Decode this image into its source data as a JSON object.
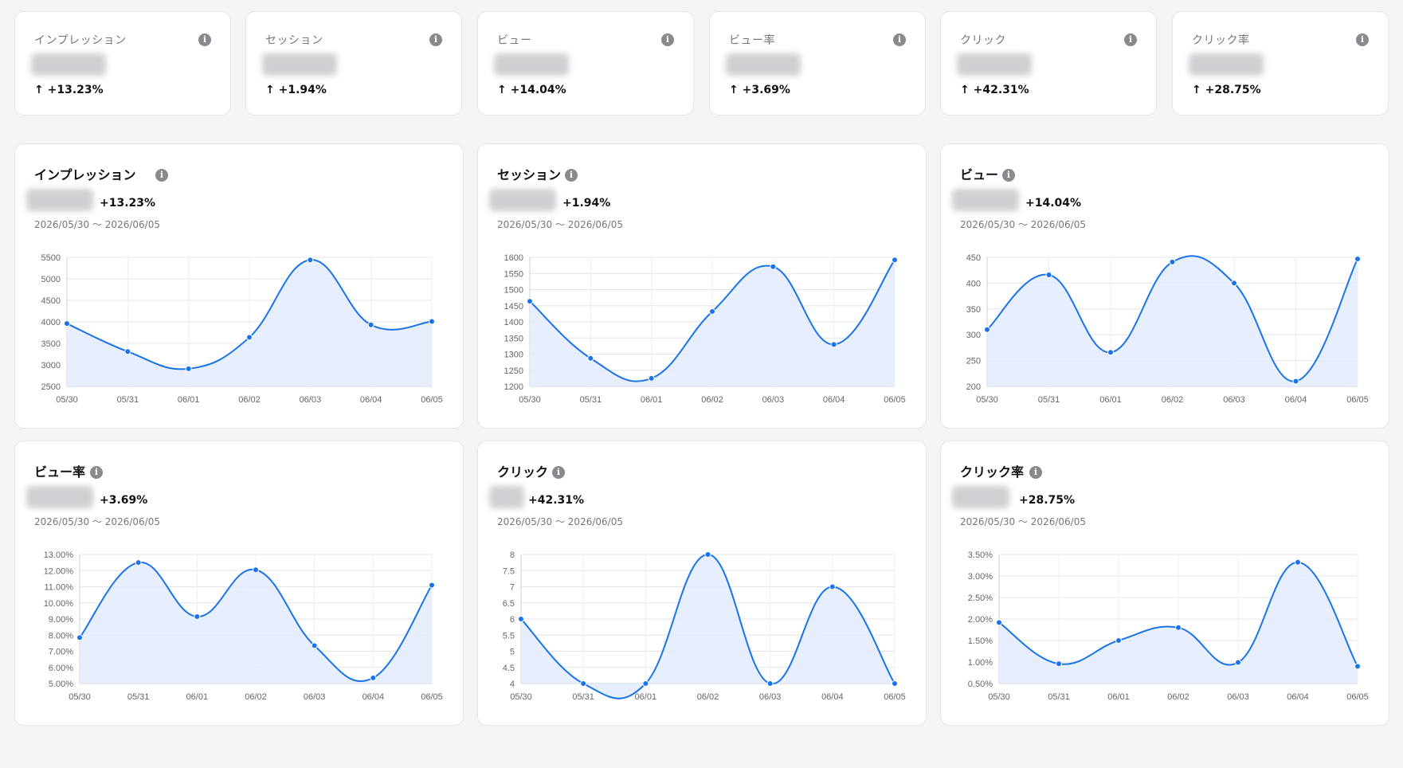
{
  "accent_color": "#1a73e8",
  "fill_color": "#e3ebfd",
  "kpis": [
    {
      "label": "インプレッション",
      "delta": "↑ +13.23%",
      "icon": "info-icon"
    },
    {
      "label": "セッション",
      "delta": "↑ +1.94%",
      "icon": "info-icon"
    },
    {
      "label": "ビュー",
      "delta": "↑ +14.04%",
      "icon": "info-icon"
    },
    {
      "label": "ビュー率",
      "delta": "↑ +3.69%",
      "icon": "info-icon"
    },
    {
      "label": "クリック",
      "delta": "↑ +42.31%",
      "icon": "info-icon"
    },
    {
      "label": "クリック率",
      "delta": "↑ +28.75%",
      "icon": "info-icon"
    }
  ],
  "charts": [
    {
      "title": "インプレッション",
      "delta": "+13.23%",
      "range": "2026/05/30 〜 2026/06/05"
    },
    {
      "title": "セッション",
      "delta": "+1.94%",
      "range": "2026/05/30 〜 2026/06/05"
    },
    {
      "title": "ビュー",
      "delta": "+14.04%",
      "range": "2026/05/30 〜 2026/06/05"
    },
    {
      "title": "ビュー率",
      "delta": "+3.69%",
      "range": "2026/05/30 〜 2026/06/05"
    },
    {
      "title": "クリック",
      "delta": "+42.31%",
      "range": "2026/05/30 〜 2026/06/05"
    },
    {
      "title": "クリック率",
      "delta": "+28.75%",
      "range": "2026/05/30 〜 2026/06/05"
    }
  ],
  "chart_data": [
    {
      "type": "line",
      "title": "インプレッション",
      "categories": [
        "05/30",
        "05/31",
        "06/01",
        "06/02",
        "06/03",
        "06/04",
        "06/05"
      ],
      "series": [
        {
          "values": [
            3960,
            3310,
            2910,
            3640,
            5440,
            3930,
            4010
          ]
        }
      ],
      "ylim": [
        2500,
        5500
      ],
      "yticks": [
        2500,
        3000,
        3500,
        4000,
        4500,
        5000,
        5500
      ],
      "yticklabels": [
        "2500",
        "3000",
        "3500",
        "4000",
        "4500",
        "5000",
        "5500"
      ],
      "grid": true
    },
    {
      "type": "line",
      "title": "セッション",
      "categories": [
        "05/30",
        "05/31",
        "06/01",
        "06/02",
        "06/03",
        "06/04",
        "06/05"
      ],
      "series": [
        {
          "values": [
            1464,
            1287,
            1225,
            1432,
            1571,
            1330,
            1592
          ]
        }
      ],
      "ylim": [
        1200,
        1600
      ],
      "yticks": [
        1200,
        1250,
        1300,
        1350,
        1400,
        1450,
        1500,
        1550,
        1600
      ],
      "yticklabels": [
        "1200",
        "1250",
        "1300",
        "1350",
        "1400",
        "1450",
        "1500",
        "1550",
        "1600"
      ],
      "grid": true
    },
    {
      "type": "line",
      "title": "ビュー",
      "categories": [
        "05/30",
        "05/31",
        "06/01",
        "06/02",
        "06/03",
        "06/04",
        "06/05"
      ],
      "series": [
        {
          "values": [
            310,
            416,
            266,
            441,
            400,
            210,
            447
          ]
        }
      ],
      "ylim": [
        200,
        450
      ],
      "yticks": [
        200,
        250,
        300,
        350,
        400,
        450
      ],
      "yticklabels": [
        "200",
        "250",
        "300",
        "350",
        "400",
        "450"
      ],
      "grid": true
    },
    {
      "type": "line",
      "title": "ビュー率",
      "categories": [
        "05/30",
        "05/31",
        "06/01",
        "06/02",
        "06/03",
        "06/04",
        "06/05"
      ],
      "series": [
        {
          "values": [
            7.85,
            12.5,
            9.15,
            12.05,
            7.35,
            5.35,
            11.1
          ]
        }
      ],
      "ylim": [
        5,
        13
      ],
      "yticks": [
        5,
        6,
        7,
        8,
        9,
        10,
        11,
        12,
        13
      ],
      "yticklabels": [
        "5.00%",
        "6.00%",
        "7.00%",
        "8.00%",
        "9.00%",
        "10.00%",
        "11.00%",
        "12.00%",
        "13.00%"
      ],
      "grid": true
    },
    {
      "type": "line",
      "title": "クリック",
      "categories": [
        "05/30",
        "05/31",
        "06/01",
        "06/02",
        "06/03",
        "06/04",
        "06/05"
      ],
      "series": [
        {
          "values": [
            6,
            4,
            4,
            8,
            4,
            7,
            4
          ]
        }
      ],
      "ylim": [
        4,
        8
      ],
      "yticks": [
        4,
        4.5,
        5,
        5.5,
        6,
        6.5,
        7,
        7.5,
        8
      ],
      "yticklabels": [
        "4",
        "4.5",
        "5",
        "5.5",
        "6",
        "6.5",
        "7",
        "7.5",
        "8"
      ],
      "grid": true
    },
    {
      "type": "line",
      "title": "クリック率",
      "categories": [
        "05/30",
        "05/31",
        "06/01",
        "06/02",
        "06/03",
        "06/04",
        "06/05"
      ],
      "series": [
        {
          "values": [
            1.92,
            0.96,
            1.5,
            1.8,
            0.99,
            3.32,
            0.9
          ]
        }
      ],
      "ylim": [
        0.5,
        3.5
      ],
      "yticks": [
        0.5,
        1,
        1.5,
        2,
        2.5,
        3,
        3.5
      ],
      "yticklabels": [
        "0.50%",
        "1.00%",
        "1.50%",
        "2.00%",
        "2.50%",
        "3.00%",
        "3.50%"
      ],
      "grid": true
    }
  ]
}
